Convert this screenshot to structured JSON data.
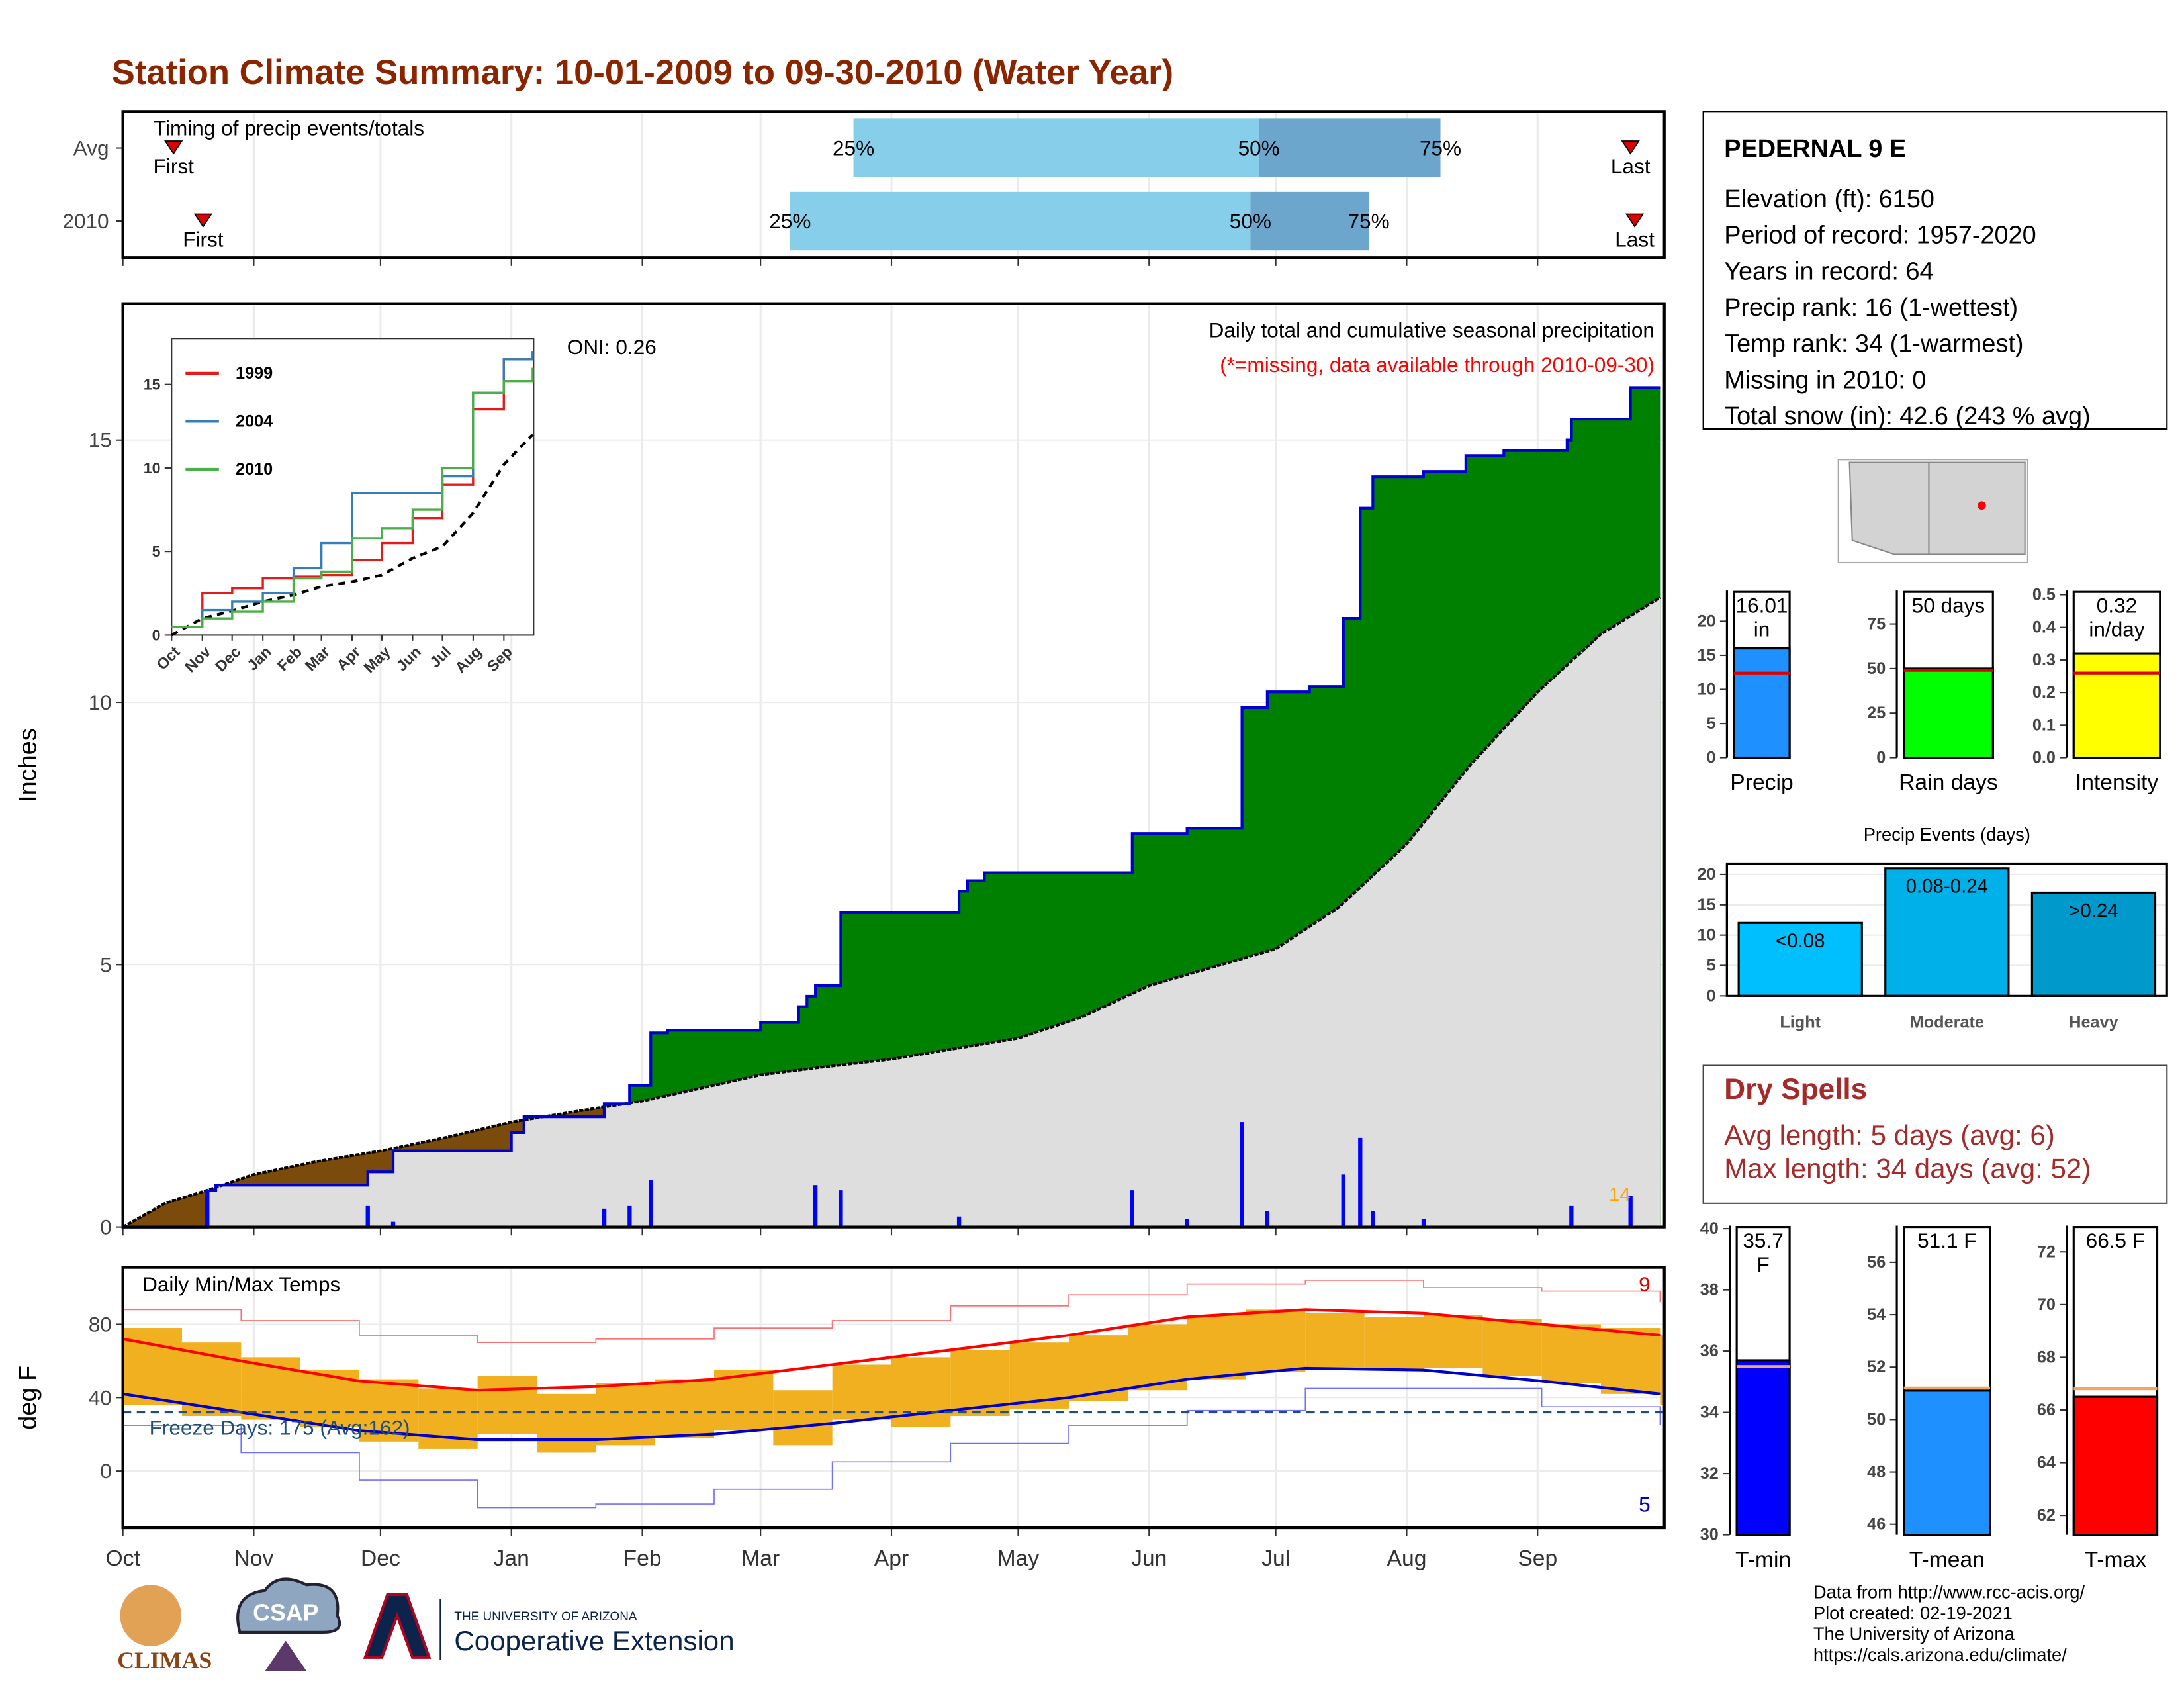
{
  "title": "Station Climate Summary: 10-01-2009 to 09-30-2010 (Water Year)",
  "chart_data": [
    {
      "type": "timeline",
      "title": "Timing of precip events/totals",
      "categories": [
        "Avg",
        "2010"
      ],
      "xlim": [
        0,
        365
      ],
      "xticks": [
        0,
        31,
        61,
        92,
        123,
        151,
        182,
        212,
        243,
        273,
        304,
        335
      ],
      "series": [
        {
          "first": 12,
          "q25": 173,
          "q50": 269,
          "q75": 312,
          "last": 357
        },
        {
          "first": 19,
          "q25": 158,
          "q50": 267,
          "q75": 295,
          "last": 358
        }
      ],
      "quantile_labels": [
        "25%",
        "50%",
        "75%"
      ],
      "first_label": "First",
      "last_label": "Last",
      "colors": [
        "#87ceeb",
        "#6ca6cd"
      ],
      "marker_color": "#dd0000"
    },
    {
      "type": "area",
      "y_label": "Inches",
      "xlim": [
        0,
        365
      ],
      "ylim": [
        0,
        17.6
      ],
      "yticks": [
        0,
        5,
        10,
        15
      ],
      "xticks": [
        0,
        31,
        61,
        92,
        123,
        151,
        182,
        212,
        243,
        273,
        304,
        335
      ],
      "grid": true,
      "subtitle": "Daily total and cumulative seasonal precipitation",
      "missing_note": "(*=missing, data available through 2010-09-30)",
      "oni": "ONI: 0.26",
      "snow_days": 14,
      "cumulative": {
        "color": "#0000cc",
        "above_color": "#008000",
        "below_color": "#7b4b0b",
        "x": [
          0,
          20,
          22,
          58,
          64,
          92,
          95,
          114,
          120,
          125,
          129,
          151,
          160,
          162,
          164,
          170,
          198,
          200,
          204,
          239,
          252,
          265,
          271,
          281,
          289,
          293,
          296,
          308,
          318,
          327,
          342,
          343,
          357,
          364
        ],
        "values": [
          0,
          0.69,
          0.8,
          1.05,
          1.45,
          1.8,
          2.1,
          2.35,
          2.7,
          3.7,
          3.75,
          3.9,
          4.2,
          4.4,
          4.6,
          6.0,
          6.4,
          6.6,
          6.75,
          7.5,
          7.6,
          9.9,
          10.2,
          10.3,
          11.6,
          13.7,
          14.3,
          14.4,
          14.7,
          14.8,
          15.0,
          15.4,
          16.0,
          16.0
        ]
      },
      "average": {
        "color": "#000000",
        "fill": "#dedede",
        "x": [
          0,
          10,
          20,
          31,
          46,
          61,
          76,
          92,
          107,
          123,
          137,
          151,
          166,
          182,
          197,
          212,
          227,
          243,
          258,
          273,
          288,
          304,
          319,
          335,
          350,
          364
        ],
        "values": [
          0,
          0.45,
          0.7,
          1.0,
          1.25,
          1.45,
          1.7,
          2.0,
          2.2,
          2.4,
          2.65,
          2.9,
          3.05,
          3.2,
          3.4,
          3.6,
          4.0,
          4.6,
          4.95,
          5.3,
          6.1,
          7.3,
          8.8,
          10.2,
          11.3,
          12.0
        ]
      },
      "daily": {
        "color": "#0000ff",
        "x": [
          20,
          58,
          64,
          114,
          120,
          125,
          164,
          170,
          198,
          239,
          252,
          265,
          271,
          289,
          293,
          296,
          308,
          343,
          357
        ],
        "values": [
          0.7,
          0.4,
          0.1,
          0.35,
          0.4,
          0.9,
          0.8,
          0.7,
          0.2,
          0.7,
          0.15,
          2.0,
          0.3,
          1.0,
          1.7,
          0.3,
          0.15,
          0.4,
          0.6
        ]
      }
    },
    {
      "type": "line",
      "xlim": [
        0,
        365
      ],
      "ylim": [
        0,
        17.75
      ],
      "yticks": [
        0,
        5,
        10,
        15
      ],
      "xticks": [
        {
          "value": 0,
          "label": "Oct"
        },
        {
          "value": 31,
          "label": "Nov"
        },
        {
          "value": 61,
          "label": "Dec"
        },
        {
          "value": 92,
          "label": "Jan"
        },
        {
          "value": 123,
          "label": "Feb"
        },
        {
          "value": 151,
          "label": "Mar"
        },
        {
          "value": 182,
          "label": "Apr"
        },
        {
          "value": 212,
          "label": "May"
        },
        {
          "value": 243,
          "label": "Jun"
        },
        {
          "value": 273,
          "label": "Jul"
        },
        {
          "value": 304,
          "label": "Aug"
        },
        {
          "value": 335,
          "label": "Sep"
        }
      ],
      "x": [
        0,
        31,
        61,
        92,
        123,
        151,
        182,
        212,
        243,
        273,
        304,
        335,
        364
      ],
      "series": [
        {
          "name": "1999",
          "color": "#e41a1c",
          "values": [
            0.5,
            2.5,
            2.8,
            3.4,
            3.5,
            3.6,
            4.5,
            5.5,
            7.0,
            9.0,
            13.5,
            16.5,
            17.0
          ]
        },
        {
          "name": "2004",
          "color": "#377eb8",
          "values": [
            0.5,
            1.5,
            2.0,
            2.5,
            4.0,
            5.5,
            8.5,
            8.5,
            8.5,
            9.5,
            14.5,
            16.5,
            17.0
          ]
        },
        {
          "name": "2010",
          "color": "#4daf4a",
          "values": [
            0.5,
            1.0,
            1.4,
            2.0,
            3.4,
            3.8,
            5.8,
            6.4,
            7.5,
            10.0,
            14.5,
            15.2,
            16.0
          ]
        }
      ],
      "average": {
        "color": "#000000",
        "values": [
          0,
          1.0,
          1.45,
          2.0,
          2.4,
          2.9,
          3.2,
          3.6,
          4.6,
          5.3,
          7.3,
          10.2,
          12.0
        ]
      }
    },
    {
      "type": "range",
      "title": "Daily Min/Max Temps",
      "y_label": "deg F",
      "xlim": [
        0,
        365
      ],
      "ylim": [
        -31,
        111
      ],
      "yticks": [
        0,
        40,
        80
      ],
      "xticks": [
        {
          "value": 0,
          "label": "Oct"
        },
        {
          "value": 31,
          "label": "Nov"
        },
        {
          "value": 61,
          "label": "Dec"
        },
        {
          "value": 92,
          "label": "Jan"
        },
        {
          "value": 123,
          "label": "Feb"
        },
        {
          "value": 151,
          "label": "Mar"
        },
        {
          "value": 182,
          "label": "Apr"
        },
        {
          "value": 212,
          "label": "May"
        },
        {
          "value": 243,
          "label": "Jun"
        },
        {
          "value": 273,
          "label": "Jul"
        },
        {
          "value": 304,
          "label": "Aug"
        },
        {
          "value": 335,
          "label": "Sep"
        }
      ],
      "grid": true,
      "freeze_line": 32,
      "freeze_label": "Freeze Days: 175 (Avg:162)",
      "record_high_count": 9,
      "record_low_count": 5,
      "bar_color": "#f0b020",
      "x": [
        0,
        14,
        28,
        42,
        56,
        70,
        84,
        98,
        112,
        126,
        140,
        154,
        168,
        182,
        196,
        210,
        224,
        238,
        252,
        266,
        280,
        294,
        308,
        322,
        336,
        350,
        364
      ],
      "max": [
        78,
        70,
        62,
        55,
        50,
        45,
        52,
        42,
        48,
        50,
        55,
        44,
        58,
        62,
        66,
        70,
        74,
        80,
        85,
        88,
        86,
        84,
        85,
        83,
        80,
        78,
        74
      ],
      "min": [
        36,
        30,
        28,
        24,
        16,
        12,
        20,
        10,
        14,
        18,
        22,
        14,
        28,
        24,
        30,
        34,
        38,
        44,
        50,
        54,
        56,
        55,
        56,
        52,
        48,
        42,
        36
      ],
      "normals": {
        "x": [
          0,
          28,
          56,
          84,
          112,
          140,
          168,
          196,
          224,
          252,
          280,
          308,
          336,
          364
        ],
        "max": [
          72,
          60,
          49,
          44,
          46,
          50,
          58,
          66,
          74,
          84,
          88,
          86,
          80,
          74
        ],
        "min": [
          42,
          32,
          22,
          17,
          17,
          20,
          26,
          33,
          40,
          50,
          56,
          55,
          49,
          42
        ],
        "max_color": "#ff0000",
        "min_color": "#0000cc"
      },
      "records": {
        "x": [
          0,
          28,
          56,
          84,
          112,
          140,
          168,
          196,
          224,
          252,
          280,
          308,
          336,
          364
        ],
        "max": [
          88,
          82,
          74,
          70,
          72,
          78,
          82,
          90,
          96,
          102,
          104,
          100,
          98,
          92
        ],
        "min": [
          25,
          10,
          -5,
          -20,
          -18,
          -10,
          5,
          15,
          25,
          33,
          45,
          45,
          35,
          25
        ],
        "max_color": "#ff7070",
        "min_color": "#7070ff"
      }
    },
    {
      "type": "bar",
      "categories": [
        "Precip"
      ],
      "values": [
        16.01
      ],
      "value_labels": [
        "16.01 in"
      ],
      "average": [
        12.4
      ],
      "average_color": "#dd0000",
      "color": "#1e90ff",
      "ylim": [
        0,
        24.5
      ],
      "yticks": [
        0,
        5,
        10,
        15,
        20
      ]
    },
    {
      "type": "bar",
      "categories": [
        "Rain days"
      ],
      "values": [
        50
      ],
      "value_labels": [
        "50 days"
      ],
      "average": [
        49
      ],
      "average_color": "#dd0000",
      "color": "#00ff00",
      "ylim": [
        0,
        93.75
      ],
      "yticks": [
        0,
        25,
        50,
        75
      ]
    },
    {
      "type": "bar",
      "categories": [
        "Intensity"
      ],
      "values": [
        0.32
      ],
      "value_labels": [
        "0.32 in/day"
      ],
      "average": [
        0.26
      ],
      "average_color": "#dd0000",
      "color": "#ffff00",
      "ylim": [
        0,
        0.513
      ],
      "yticks": [
        {
          "value": 0,
          "label": "0.0"
        },
        0.1,
        0.2,
        0.3,
        0.4,
        0.5
      ]
    },
    {
      "type": "bar",
      "title": "Precip Events (days)",
      "categories": [
        "Light",
        "Moderate",
        "Heavy"
      ],
      "values": [
        12,
        21,
        17
      ],
      "bin_labels": [
        "<0.08",
        "0.08-0.24",
        ">0.24"
      ],
      "colors": [
        "#00bfff",
        "#00b0e8",
        "#0099cc"
      ],
      "ylim": [
        0,
        21.8
      ],
      "yticks": [
        0,
        5,
        10,
        15,
        20
      ],
      "grid": true
    },
    {
      "type": "bar",
      "categories": [
        "T-min"
      ],
      "values": [
        35.7
      ],
      "value_labels": [
        "35.7 F"
      ],
      "average": [
        35.5
      ],
      "average_color": "#f4a460",
      "color": "#0000ff",
      "ylim": [
        30,
        40.1
      ],
      "yticks": [
        30,
        32,
        34,
        36,
        38,
        40
      ]
    },
    {
      "type": "bar",
      "categories": [
        "T-mean"
      ],
      "values": [
        51.1
      ],
      "value_labels": [
        "51.1 F"
      ],
      "average": [
        51.2
      ],
      "average_color": "#f4a460",
      "color": "#1e90ff",
      "ylim": [
        45.6,
        57.4
      ],
      "yticks": [
        46,
        48,
        50,
        52,
        54,
        56
      ]
    },
    {
      "type": "bar",
      "categories": [
        "T-max"
      ],
      "values": [
        66.5
      ],
      "value_labels": [
        "66.5 F"
      ],
      "average": [
        66.8
      ],
      "average_color": "#f4a460",
      "color": "#ff0000",
      "ylim": [
        61.26,
        73
      ],
      "yticks": [
        62,
        64,
        66,
        68,
        70,
        72
      ]
    }
  ],
  "station": {
    "name": "PEDERNAL 9 E",
    "lines": [
      "Elevation (ft): 6150",
      "Period of record: 1957-2020",
      "Years in record: 64",
      "Precip rank: 16 (1-wettest)",
      "Temp rank: 34 (1-warmest)",
      "Missing in 2010: 0",
      "Total snow (in): 42.6 (243 % avg)"
    ]
  },
  "dry_spells": {
    "title": "Dry Spells",
    "lines": [
      "Avg length: 5 days (avg: 6)",
      "Max length: 34 days (avg: 52)"
    ]
  },
  "footer": [
    "Data from http://www.rcc-acis.org/",
    "Plot created: 02-19-2021",
    "The University of Arizona",
    "https://cals.arizona.edu/climate/"
  ],
  "logos": {
    "climas": "CLIMAS",
    "csap": "CSAP",
    "university": "THE UNIVERSITY OF ARIZONA",
    "extension": "Cooperative Extension"
  }
}
